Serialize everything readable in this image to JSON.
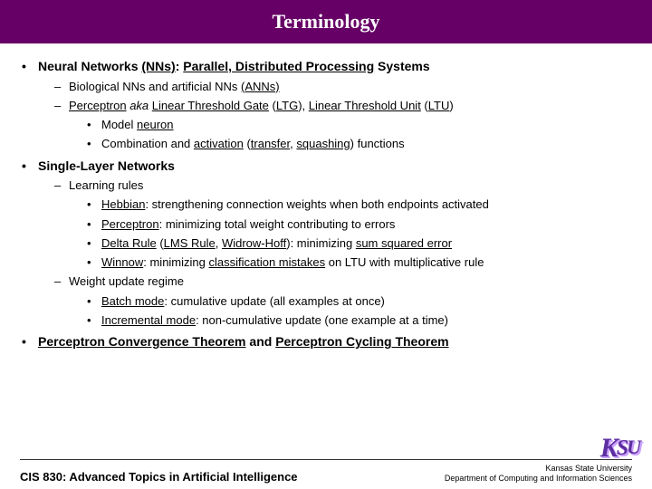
{
  "title": "Terminology",
  "colors": {
    "header_bg": "#660066",
    "header_text": "#ffffff",
    "body_text": "#000000",
    "logo": "#5d2ea0"
  },
  "b1": {
    "head": "Neural Networks ",
    "nns_label": "(NNs)",
    "colon": ": ",
    "pdp": "Parallel, Distributed Processing",
    "tail": " Systems",
    "s1_a": "Biological NNs and artificial NNs ",
    "s1_b": "(ANNs)",
    "s2_a": "Perceptron",
    "s2_b": " aka ",
    "s2_c": "Linear Threshold Gate",
    "s2_d": " (",
    "s2_e": "LTG",
    "s2_f": "), ",
    "s2_g": "Linear Threshold Unit",
    "s2_h": " (",
    "s2_i": "LTU",
    "s2_j": ")",
    "s2_1a": "Model ",
    "s2_1b": "neuron",
    "s2_2a": "Combination and ",
    "s2_2b": "activation",
    "s2_2c": " (",
    "s2_2d": "transfer",
    "s2_2e": ", ",
    "s2_2f": "squashing",
    "s2_2g": ") functions"
  },
  "b2": {
    "head": "Single-Layer Networks",
    "s1": "Learning rules",
    "s1_1a": "Hebbian",
    "s1_1b": ": strengthening connection weights when both endpoints activated",
    "s1_2a": "Perceptron",
    "s1_2b": ": minimizing total weight contributing to errors",
    "s1_3a": "Delta Rule",
    "s1_3b": " (",
    "s1_3c": "LMS Rule",
    "s1_3d": ", ",
    "s1_3e": "Widrow-Hoff",
    "s1_3f": "): minimizing ",
    "s1_3g": "sum squared error",
    "s1_4a": "Winnow",
    "s1_4b": ": minimizing ",
    "s1_4c": "classification mistakes",
    "s1_4d": " on LTU with multiplicative rule",
    "s2": "Weight update regime",
    "s2_1a": "Batch mode",
    "s2_1b": ": cumulative update (all examples at once)",
    "s2_2a": "Incremental mode",
    "s2_2b": ": non-cumulative update (one example at a time)"
  },
  "b3": {
    "a": "Perceptron Convergence Theorem",
    "b": " and ",
    "c": "Perceptron Cycling Theorem"
  },
  "footer": {
    "course": "CIS 830: Advanced Topics in Artificial Intelligence",
    "univ1": "Kansas State University",
    "univ2": "Department of Computing and Information Sciences",
    "logo_k": "K",
    "logo_s": "S",
    "logo_u": "U"
  }
}
